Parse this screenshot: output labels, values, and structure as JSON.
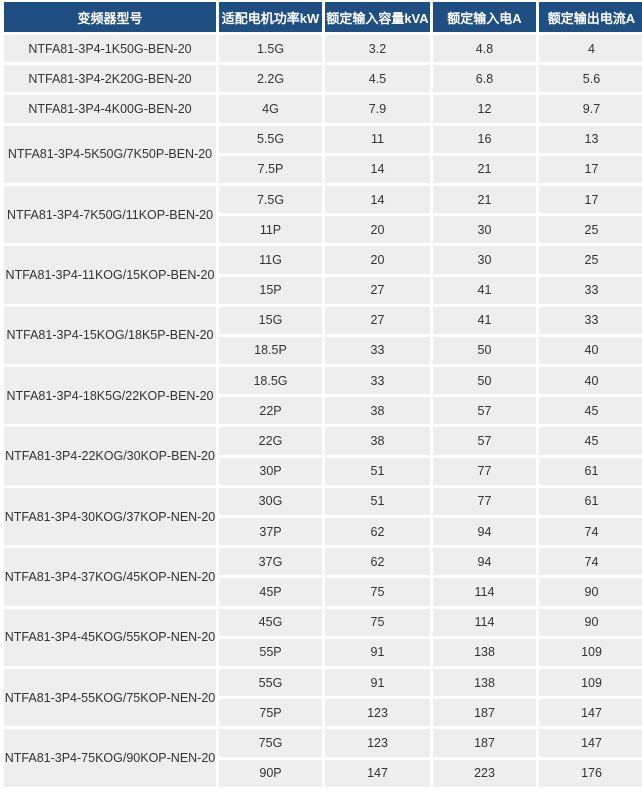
{
  "headers": [
    "变频器型号",
    "适配电机功率kW",
    "额定输入容量kVA",
    "额定输入电A",
    "额定输出电流A"
  ],
  "models": [
    {
      "model": "NTFA81-3P4-1K50G-BEN-20",
      "rows": [
        [
          "1.5G",
          "3.2",
          "4.8",
          "4"
        ]
      ]
    },
    {
      "model": "NTFA81-3P4-2K20G-BEN-20",
      "rows": [
        [
          "2.2G",
          "4.5",
          "6.8",
          "5.6"
        ]
      ]
    },
    {
      "model": "NTFA81-3P4-4K00G-BEN-20",
      "rows": [
        [
          "4G",
          "7.9",
          "12",
          "9.7"
        ]
      ]
    },
    {
      "model": "NTFA81-3P4-5K50G/7K50P-BEN-20",
      "rows": [
        [
          "5.5G",
          "11",
          "16",
          "13"
        ],
        [
          "7.5P",
          "14",
          "21",
          "17"
        ]
      ]
    },
    {
      "model": "NTFA81-3P4-7K50G/11KOP-BEN-20",
      "rows": [
        [
          "7.5G",
          "14",
          "21",
          "17"
        ],
        [
          "11P",
          "20",
          "30",
          "25"
        ]
      ]
    },
    {
      "model": "NTFA81-3P4-11KOG/15KOP-BEN-20",
      "rows": [
        [
          "11G",
          "20",
          "30",
          "25"
        ],
        [
          "15P",
          "27",
          "41",
          "33"
        ]
      ]
    },
    {
      "model": "NTFA81-3P4-15KOG/18K5P-BEN-20",
      "rows": [
        [
          "15G",
          "27",
          "41",
          "33"
        ],
        [
          "18.5P",
          "33",
          "50",
          "40"
        ]
      ]
    },
    {
      "model": "NTFA81-3P4-18K5G/22KOP-BEN-20",
      "rows": [
        [
          "18.5G",
          "33",
          "50",
          "40"
        ],
        [
          "22P",
          "38",
          "57",
          "45"
        ]
      ]
    },
    {
      "model": "NTFA81-3P4-22KOG/30KOP-BEN-20",
      "rows": [
        [
          "22G",
          "38",
          "57",
          "45"
        ],
        [
          "30P",
          "51",
          "77",
          "61"
        ]
      ]
    },
    {
      "model": "NTFA81-3P4-30KOG/37KOP-NEN-20",
      "rows": [
        [
          "30G",
          "51",
          "77",
          "61"
        ],
        [
          "37P",
          "62",
          "94",
          "74"
        ]
      ]
    },
    {
      "model": "NTFA81-3P4-37KOG/45KOP-NEN-20",
      "rows": [
        [
          "37G",
          "62",
          "94",
          "74"
        ],
        [
          "45P",
          "75",
          "114",
          "90"
        ]
      ]
    },
    {
      "model": "NTFA81-3P4-45KOG/55KOP-NEN-20",
      "rows": [
        [
          "45G",
          "75",
          "114",
          "90"
        ],
        [
          "55P",
          "91",
          "138",
          "109"
        ]
      ]
    },
    {
      "model": "NTFA81-3P4-55KOG/75KOP-NEN-20",
      "rows": [
        [
          "55G",
          "91",
          "138",
          "109"
        ],
        [
          "75P",
          "123",
          "187",
          "147"
        ]
      ]
    },
    {
      "model": "NTFA81-3P4-75KOG/90KOP-NEN-20",
      "rows": [
        [
          "75G",
          "123",
          "187",
          "147"
        ],
        [
          "90P",
          "147",
          "223",
          "176"
        ]
      ]
    }
  ],
  "colors": {
    "header_bg": "#1f4e82",
    "cell_bg": "#eeeeee"
  }
}
